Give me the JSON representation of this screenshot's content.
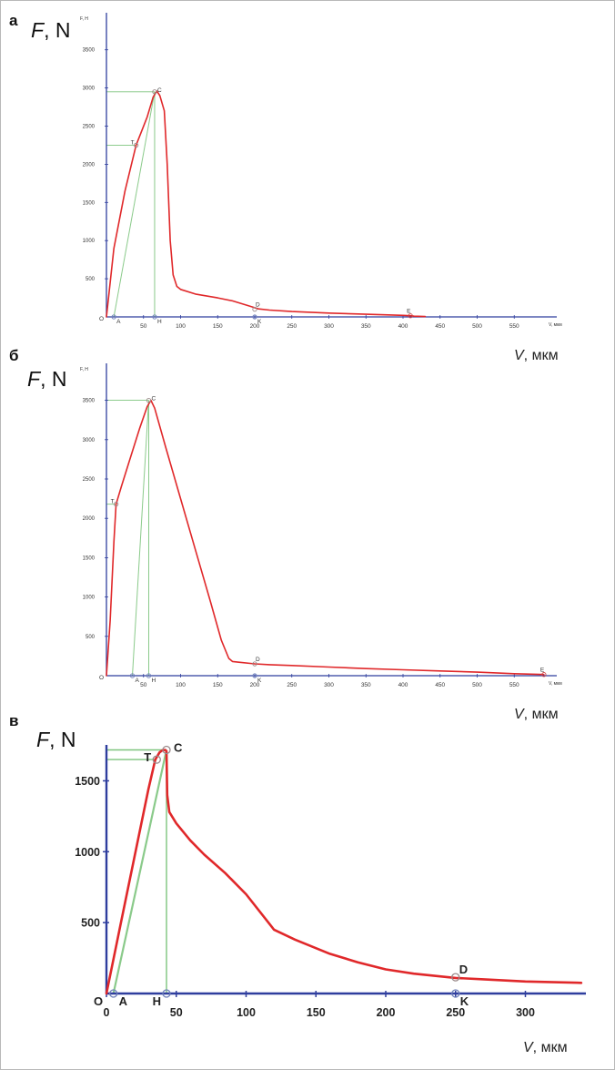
{
  "chart_data": [
    {
      "panel": "a",
      "type": "line",
      "title": "",
      "ylabel_large": "F, N",
      "ylabel_small": "F, H",
      "xlabel_small": "V, мкм",
      "xlabel_large": "V, мкм",
      "origin_label": "O",
      "xlim": [
        0,
        600
      ],
      "ylim": [
        0,
        4000
      ],
      "xticks": [
        "50",
        "100",
        "150",
        "200",
        "250",
        "300",
        "350",
        "400",
        "450",
        "500",
        "550"
      ],
      "xtick_values": [
        50,
        100,
        150,
        200,
        250,
        300,
        350,
        400,
        450,
        500,
        550
      ],
      "yticks": [
        "500",
        "1000",
        "1500",
        "2000",
        "2500",
        "3000",
        "3500"
      ],
      "ytick_values": [
        500,
        1000,
        1500,
        2000,
        2500,
        3000,
        3500
      ],
      "series": [
        {
          "color": "#e0282a",
          "x": [
            0,
            10,
            25,
            40,
            55,
            63,
            68,
            72,
            78,
            82,
            86,
            90,
            95,
            100,
            120,
            150,
            170,
            190,
            200,
            205,
            220,
            250,
            300,
            350,
            400,
            410,
            415,
            430
          ],
          "y": [
            0,
            900,
            1650,
            2250,
            2620,
            2880,
            2960,
            2900,
            2700,
            2000,
            1000,
            550,
            400,
            360,
            300,
            250,
            210,
            150,
            120,
            105,
            90,
            70,
            50,
            35,
            20,
            15,
            10,
            5
          ]
        }
      ],
      "points": [
        {
          "label": "A",
          "x": 10,
          "y": 0
        },
        {
          "label": "H",
          "x": 65,
          "y": 0
        },
        {
          "label": "K",
          "x": 200,
          "y": 0
        },
        {
          "label": "T",
          "x": 40,
          "y": 2250
        },
        {
          "label": "C",
          "x": 65,
          "y": 2950
        },
        {
          "label": "D",
          "x": 200,
          "y": 100
        },
        {
          "label": "E",
          "x": 410,
          "y": 15
        }
      ],
      "helper_color": "#7dc47d"
    },
    {
      "panel": "б",
      "type": "line",
      "title": "",
      "ylabel_large": "F, N",
      "ylabel_small": "F, H",
      "xlabel_small": "V, мкм",
      "xlabel_large": "V, мкм",
      "origin_label": "O",
      "xlim": [
        0,
        600
      ],
      "ylim": [
        0,
        4000
      ],
      "xticks": [
        "50",
        "100",
        "150",
        "200",
        "250",
        "300",
        "350",
        "400",
        "450",
        "500",
        "550"
      ],
      "xtick_values": [
        50,
        100,
        150,
        200,
        250,
        300,
        350,
        400,
        450,
        500,
        550
      ],
      "yticks": [
        "500",
        "1000",
        "1500",
        "2000",
        "2500",
        "3000",
        "3500"
      ],
      "ytick_values": [
        500,
        1000,
        1500,
        2000,
        2500,
        3000,
        3500
      ],
      "series": [
        {
          "color": "#e0282a",
          "x": [
            0,
            5,
            10,
            13,
            20,
            30,
            45,
            55,
            60,
            65,
            80,
            100,
            120,
            140,
            155,
            165,
            170,
            180,
            200,
            220,
            250,
            300,
            350,
            400,
            450,
            500,
            550,
            590
          ],
          "y": [
            0,
            700,
            1700,
            2180,
            2400,
            2700,
            3150,
            3420,
            3500,
            3400,
            2900,
            2250,
            1600,
            950,
            450,
            220,
            180,
            170,
            150,
            140,
            130,
            110,
            90,
            75,
            60,
            45,
            25,
            15
          ]
        }
      ],
      "points": [
        {
          "label": "A",
          "x": 35,
          "y": 0
        },
        {
          "label": "H",
          "x": 57,
          "y": 0
        },
        {
          "label": "K",
          "x": 200,
          "y": 0
        },
        {
          "label": "T",
          "x": 13,
          "y": 2180
        },
        {
          "label": "C",
          "x": 57,
          "y": 3500
        },
        {
          "label": "D",
          "x": 200,
          "y": 150
        },
        {
          "label": "E",
          "x": 590,
          "y": 15
        }
      ],
      "helper_color": "#7dc47d"
    },
    {
      "panel": "в",
      "type": "line",
      "title": "",
      "ylabel": "F, N",
      "xlabel": "V, мкм",
      "origin_label": "O",
      "xlim": [
        0,
        340
      ],
      "ylim": [
        0,
        1860
      ],
      "xticks": [
        "0",
        "50",
        "100",
        "150",
        "200",
        "250",
        "300"
      ],
      "xtick_values": [
        0,
        50,
        100,
        150,
        200,
        250,
        300
      ],
      "yticks": [
        "500",
        "1000",
        "1500"
      ],
      "ytick_values": [
        500,
        1000,
        1500
      ],
      "series": [
        {
          "color": "#e0282a",
          "x": [
            0,
            10,
            20,
            30,
            35,
            38,
            40,
            42,
            43,
            43.5,
            45,
            50,
            60,
            70,
            85,
            100,
            120,
            135,
            160,
            180,
            200,
            220,
            250,
            270,
            300,
            340
          ],
          "y": [
            0,
            480,
            960,
            1440,
            1650,
            1700,
            1715,
            1718,
            1710,
            1400,
            1280,
            1200,
            1080,
            980,
            850,
            700,
            450,
            380,
            280,
            220,
            170,
            140,
            110,
            100,
            85,
            75
          ]
        }
      ],
      "points": [
        {
          "label": "A",
          "x": 5,
          "y": 0
        },
        {
          "label": "H",
          "x": 43,
          "y": 0
        },
        {
          "label": "K",
          "x": 250,
          "y": 0
        },
        {
          "label": "T",
          "x": 36,
          "y": 1650
        },
        {
          "label": "C",
          "x": 43,
          "y": 1718
        },
        {
          "label": "D",
          "x": 250,
          "y": 115
        }
      ],
      "helper_color": "#7dc47d"
    }
  ]
}
